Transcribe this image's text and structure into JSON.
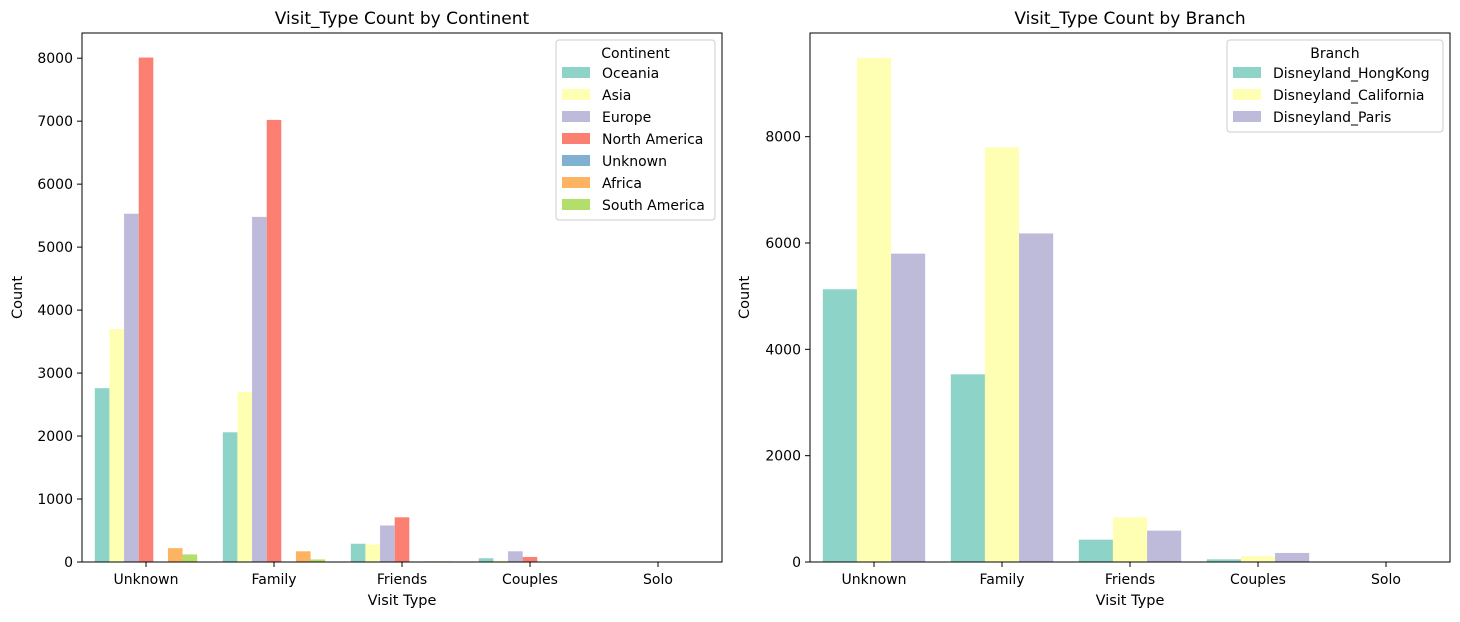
{
  "chart_data": [
    {
      "type": "bar",
      "title": "Visit_Type Count by Continent",
      "xlabel": "Visit Type",
      "ylabel": "Count",
      "categories": [
        "Unknown",
        "Family",
        "Friends",
        "Couples",
        "Solo"
      ],
      "ylim": [
        0,
        8400
      ],
      "yticks": [
        0,
        1000,
        2000,
        3000,
        4000,
        5000,
        6000,
        7000,
        8000
      ],
      "legend": {
        "title": "Continent",
        "placement": "top-right"
      },
      "series": [
        {
          "name": "Oceania",
          "color": "#8dd3c7",
          "values": [
            2760,
            2060,
            290,
            60,
            0
          ]
        },
        {
          "name": "Asia",
          "color": "#ffffb3",
          "values": [
            3700,
            2700,
            280,
            20,
            0
          ]
        },
        {
          "name": "Europe",
          "color": "#bebada",
          "values": [
            5530,
            5480,
            580,
            170,
            0
          ]
        },
        {
          "name": "North America",
          "color": "#fb8072",
          "values": [
            8010,
            7020,
            710,
            80,
            0
          ]
        },
        {
          "name": "Unknown",
          "color": "#80b1d3",
          "values": [
            0,
            0,
            0,
            0,
            0
          ]
        },
        {
          "name": "Africa",
          "color": "#fdb462",
          "values": [
            220,
            170,
            10,
            0,
            0
          ]
        },
        {
          "name": "South America",
          "color": "#b3de69",
          "values": [
            120,
            40,
            10,
            0,
            0
          ]
        }
      ]
    },
    {
      "type": "bar",
      "title": "Visit_Type Count by Branch",
      "xlabel": "Visit Type",
      "ylabel": "Count",
      "categories": [
        "Unknown",
        "Family",
        "Friends",
        "Couples",
        "Solo"
      ],
      "ylim": [
        0,
        9950
      ],
      "yticks": [
        0,
        2000,
        4000,
        6000,
        8000
      ],
      "legend": {
        "title": "Branch",
        "placement": "top-right"
      },
      "series": [
        {
          "name": "Disneyland_HongKong",
          "color": "#8dd3c7",
          "values": [
            5130,
            3530,
            420,
            50,
            0
          ]
        },
        {
          "name": "Disneyland_California",
          "color": "#ffffb3",
          "values": [
            9480,
            7800,
            840,
            110,
            0
          ]
        },
        {
          "name": "Disneyland_Paris",
          "color": "#bebada",
          "values": [
            5800,
            6180,
            590,
            170,
            0
          ]
        }
      ]
    }
  ]
}
